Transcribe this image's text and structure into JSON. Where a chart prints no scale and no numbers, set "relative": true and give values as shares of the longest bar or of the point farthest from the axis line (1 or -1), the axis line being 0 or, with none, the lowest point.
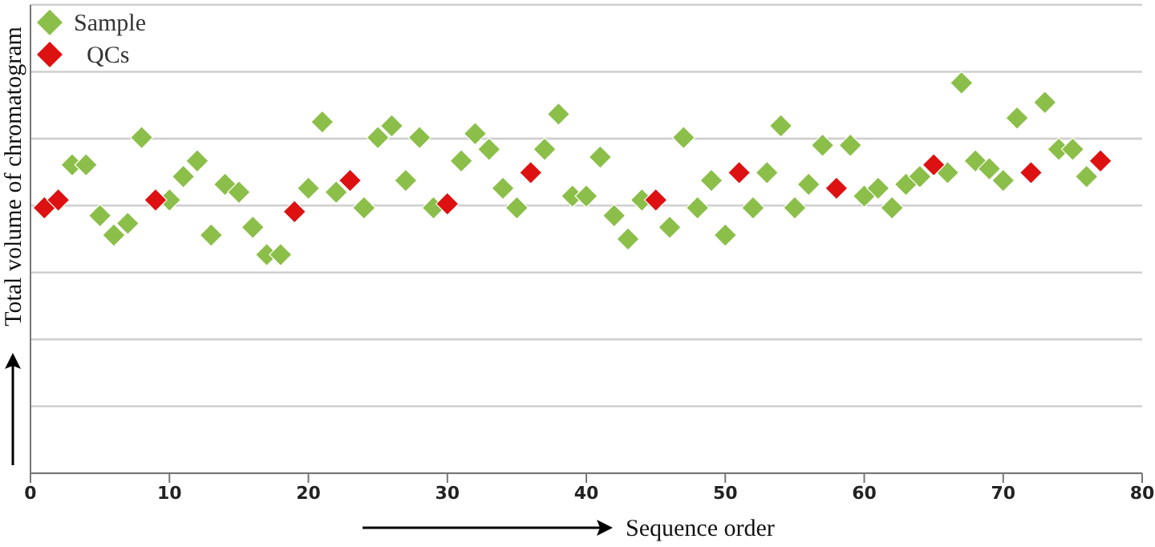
{
  "chart_data": {
    "type": "scatter",
    "relative": true,
    "xlabel": "Sequence order",
    "ylabel": "Total volume of chromatogram",
    "xlim": [
      0,
      80
    ],
    "xticks": [
      0,
      10,
      20,
      30,
      40,
      50,
      60,
      70,
      80
    ],
    "grid": "y",
    "legend": "top left",
    "marker": "diamond",
    "series": [
      {
        "name": "Sample",
        "color": "#8cbf4a",
        "x": [
          3,
          4,
          5,
          6,
          7,
          8,
          10,
          11,
          12,
          13,
          14,
          15,
          16,
          17,
          18,
          20,
          21,
          22,
          24,
          25,
          26,
          27,
          28,
          29,
          31,
          32,
          33,
          34,
          35,
          37,
          38,
          39,
          40,
          41,
          42,
          43,
          44,
          46,
          47,
          48,
          49,
          50,
          52,
          53,
          54,
          55,
          56,
          57,
          59,
          60,
          61,
          62,
          63,
          64,
          66,
          67,
          68,
          69,
          70,
          71,
          73,
          74,
          75,
          76
        ],
        "values": [
          0.79,
          0.79,
          0.66,
          0.61,
          0.64,
          0.86,
          0.7,
          0.76,
          0.8,
          0.61,
          0.74,
          0.72,
          0.63,
          0.56,
          0.56,
          0.73,
          0.9,
          0.72,
          0.68,
          0.86,
          0.89,
          0.75,
          0.86,
          0.68,
          0.8,
          0.87,
          0.83,
          0.73,
          0.68,
          0.83,
          0.92,
          0.71,
          0.71,
          0.81,
          0.66,
          0.6,
          0.7,
          0.63,
          0.86,
          0.68,
          0.75,
          0.61,
          0.68,
          0.77,
          0.89,
          0.68,
          0.74,
          0.84,
          0.84,
          0.71,
          0.73,
          0.68,
          0.74,
          0.76,
          0.77,
          1,
          0.8,
          0.78,
          0.75,
          0.91,
          0.95,
          0.83,
          0.83,
          0.76
        ]
      },
      {
        "name": "QCs",
        "color": "#dd1111",
        "x": [
          1,
          2,
          9,
          19,
          23,
          30,
          36,
          45,
          51,
          58,
          65,
          72,
          77
        ],
        "values": [
          0.68,
          0.7,
          0.7,
          0.67,
          0.75,
          0.69,
          0.77,
          0.7,
          0.77,
          0.73,
          0.79,
          0.77,
          0.8
        ]
      }
    ]
  }
}
